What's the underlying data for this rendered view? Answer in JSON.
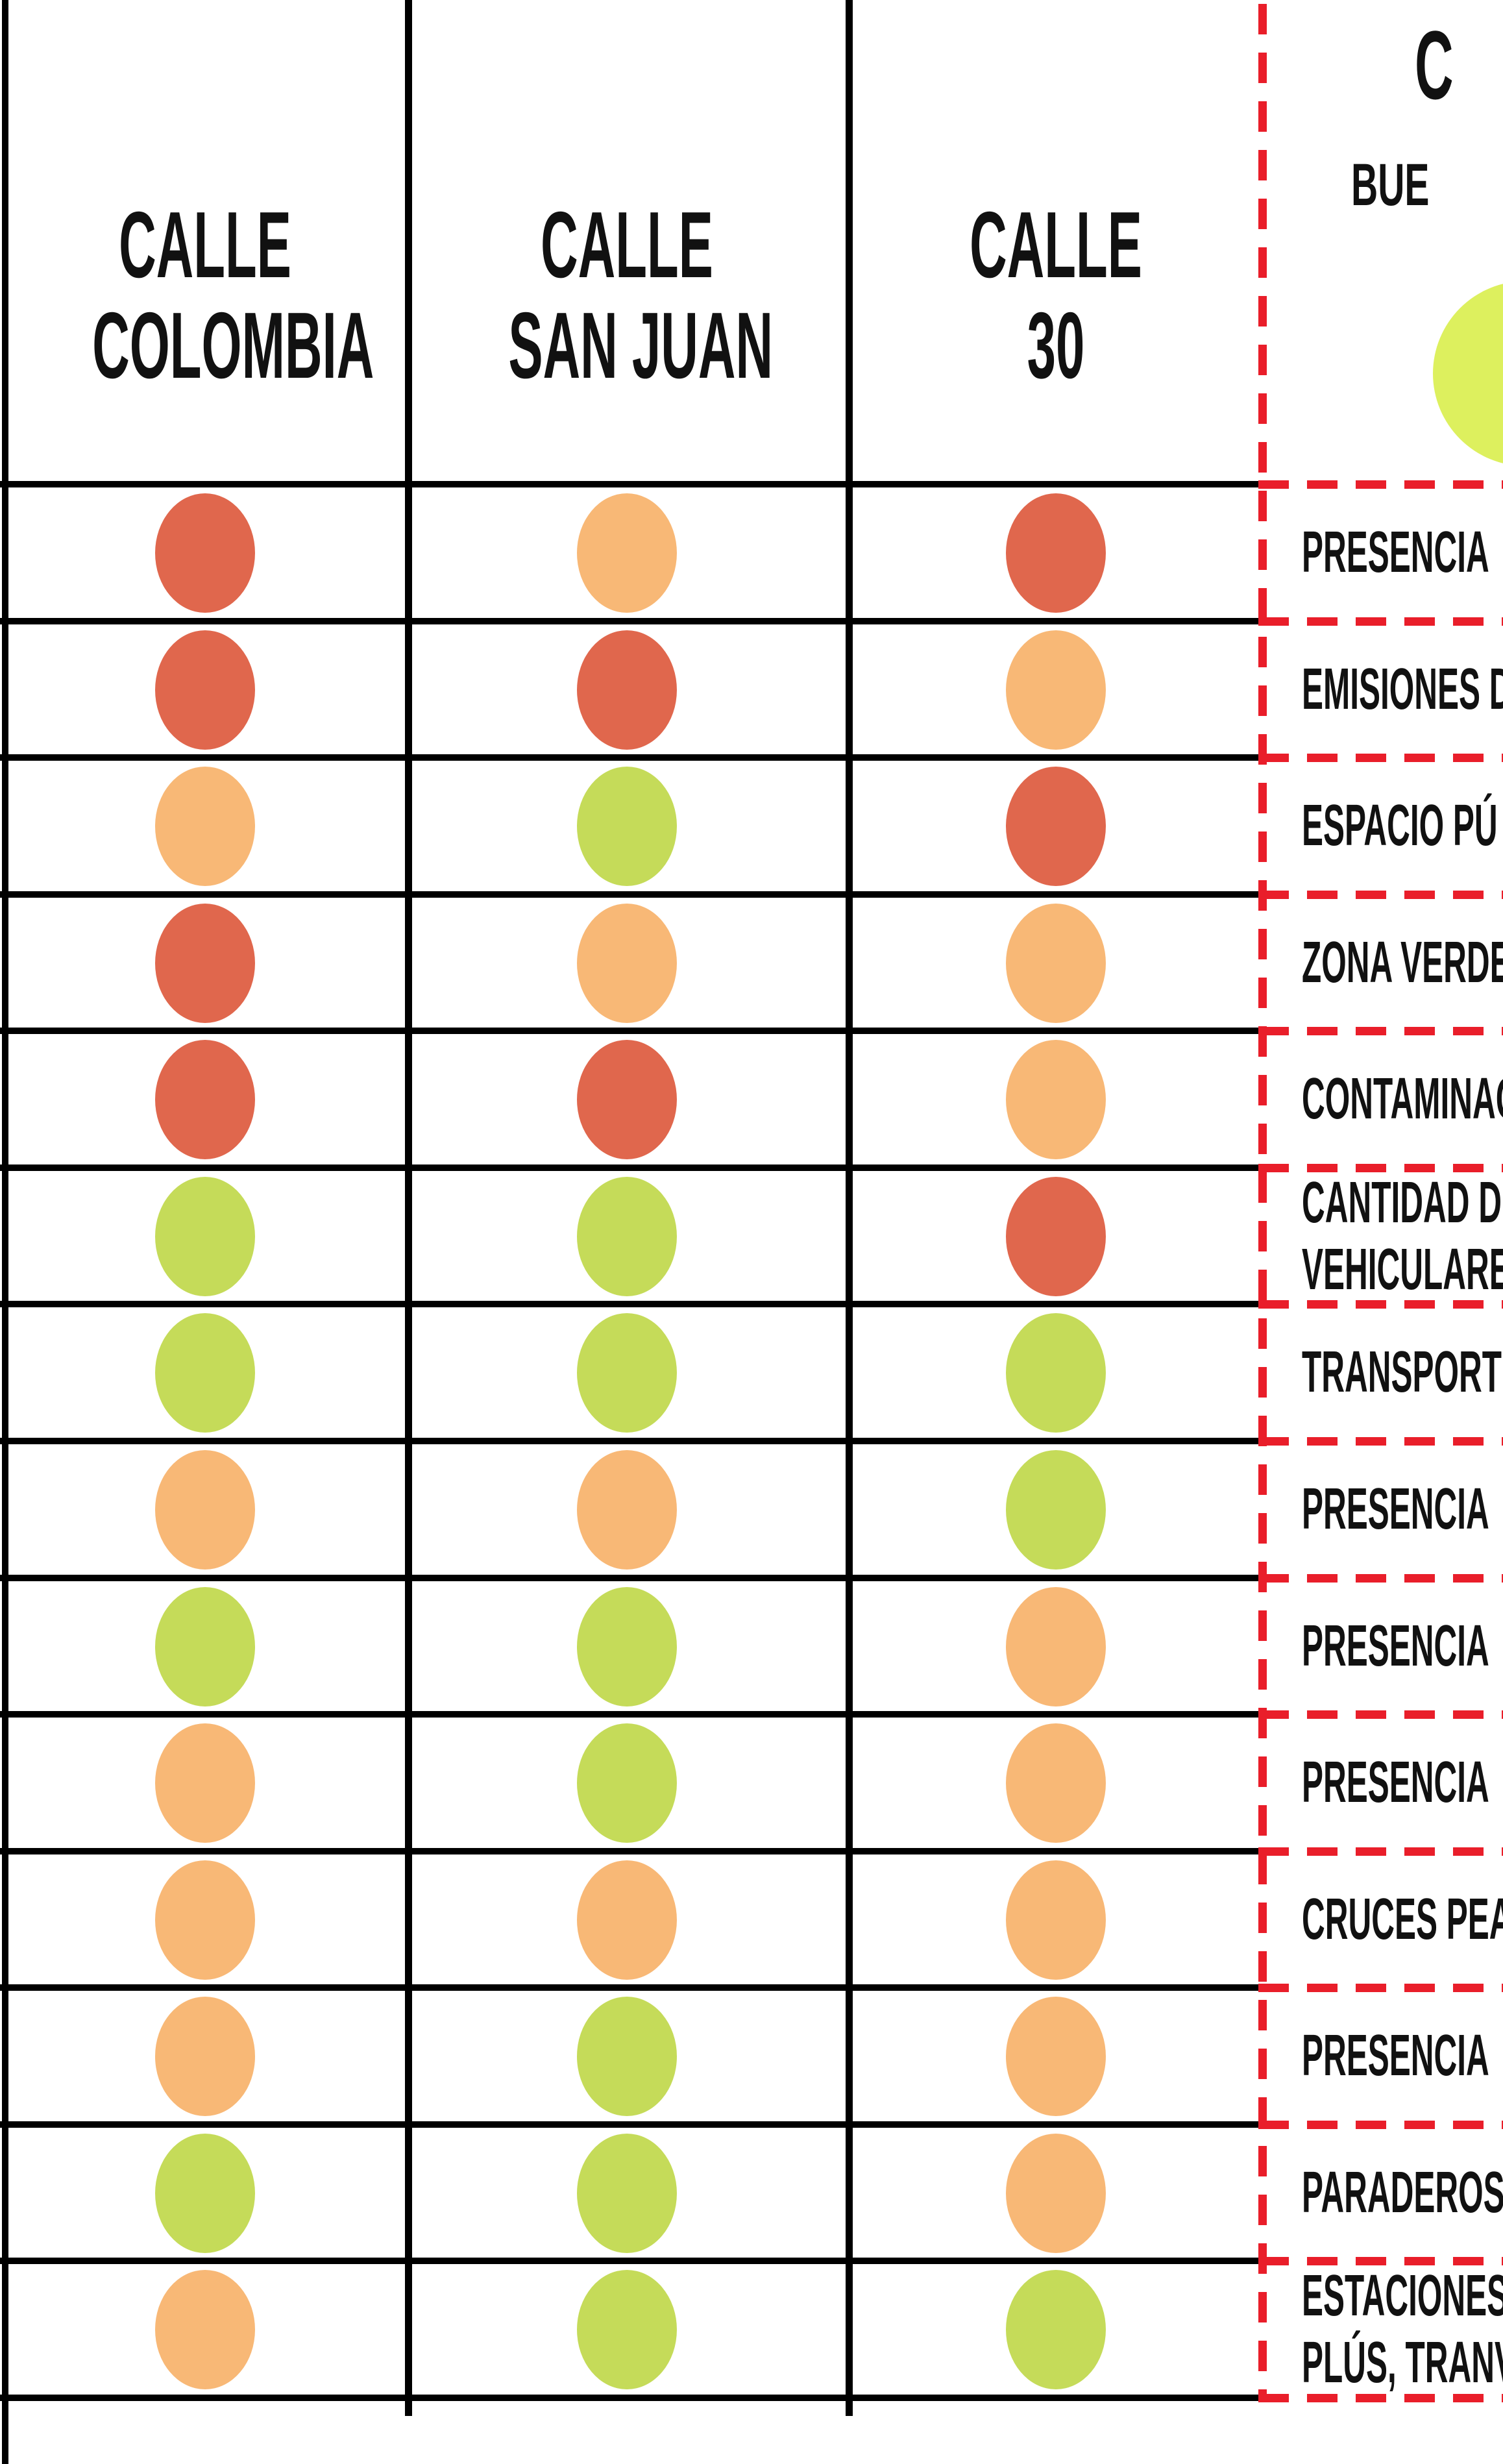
{
  "chart_data": {
    "type": "table",
    "columns": [
      {
        "name": "CALLE COLOMBIA",
        "header_lines": [
          "CALLE",
          "COLOMBIA"
        ]
      },
      {
        "name": "CALLE SAN JUAN",
        "header_lines": [
          "CALLE",
          "SAN JUAN"
        ]
      },
      {
        "name": "CALLE 30",
        "header_lines": [
          "CALLE",
          "30"
        ]
      }
    ],
    "rating_colors": {
      "red": "#E0674D",
      "orange": "#F8B876",
      "green": "#C5DB59"
    },
    "rows": [
      {
        "label_lines": [
          "PRESENCIA"
        ],
        "ratings": [
          "red",
          "orange",
          "red"
        ]
      },
      {
        "label_lines": [
          "EMISIONES D"
        ],
        "ratings": [
          "red",
          "red",
          "orange"
        ]
      },
      {
        "label_lines": [
          "ESPACIO PÚ"
        ],
        "ratings": [
          "orange",
          "green",
          "red"
        ]
      },
      {
        "label_lines": [
          "ZONA VERDE"
        ],
        "ratings": [
          "red",
          "orange",
          "orange"
        ]
      },
      {
        "label_lines": [
          "CONTAMINAC"
        ],
        "ratings": [
          "red",
          "red",
          "orange"
        ]
      },
      {
        "label_lines": [
          "CANTIDAD D",
          "VEHICULARE"
        ],
        "ratings": [
          "green",
          "green",
          "red"
        ]
      },
      {
        "label_lines": [
          "TRANSPORTE"
        ],
        "ratings": [
          "green",
          "green",
          "green"
        ]
      },
      {
        "label_lines": [
          "PRESENCIA"
        ],
        "ratings": [
          "orange",
          "orange",
          "green"
        ]
      },
      {
        "label_lines": [
          "PRESENCIA"
        ],
        "ratings": [
          "green",
          "green",
          "orange"
        ]
      },
      {
        "label_lines": [
          "PRESENCIA"
        ],
        "ratings": [
          "orange",
          "green",
          "orange"
        ]
      },
      {
        "label_lines": [
          "CRUCES PEA"
        ],
        "ratings": [
          "orange",
          "orange",
          "orange"
        ]
      },
      {
        "label_lines": [
          "PRESENCIA"
        ],
        "ratings": [
          "orange",
          "green",
          "orange"
        ]
      },
      {
        "label_lines": [
          "PARADEROS"
        ],
        "ratings": [
          "green",
          "green",
          "orange"
        ]
      },
      {
        "label_lines": [
          "ESTACIONES D",
          "PLÚS, TRANVÍ"
        ],
        "ratings": [
          "orange",
          "green",
          "green"
        ]
      }
    ]
  },
  "legend": {
    "title_visible": "C",
    "entry_label_visible": "BUE",
    "entry_dot_color": "#DDF05E"
  },
  "style": {
    "background": "#FFFFFF",
    "grid_line_color": "#000000",
    "dashed_border_color": "#E91E2A"
  }
}
